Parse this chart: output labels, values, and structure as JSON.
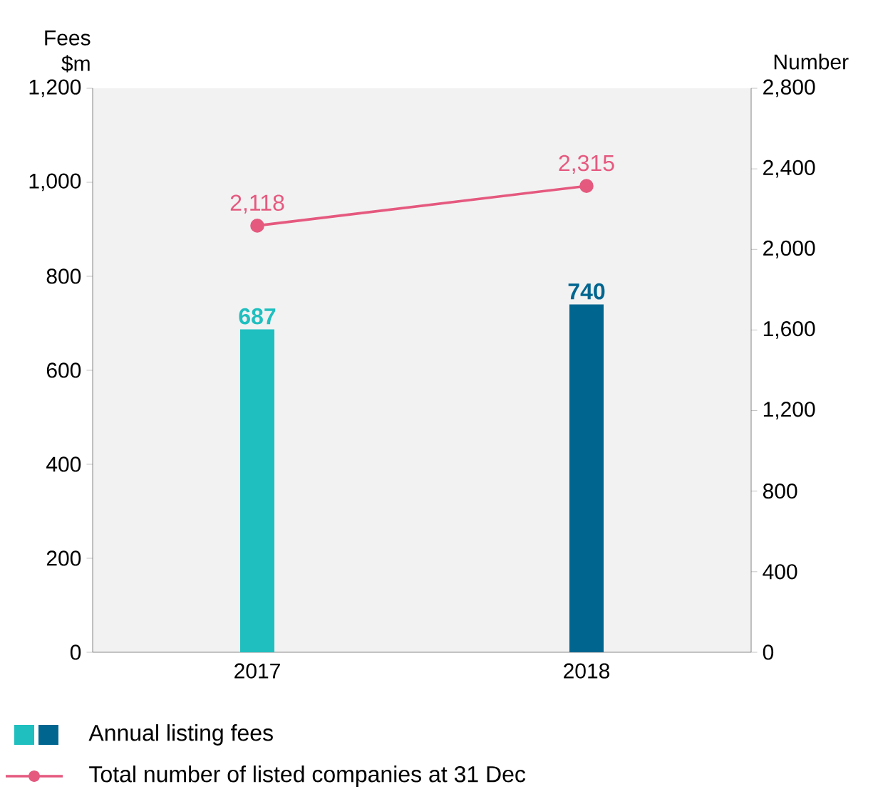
{
  "chart_data": {
    "type": "bar",
    "ylabel": "Fees $m",
    "y2label": "Number",
    "categories": [
      "2017",
      "2018"
    ],
    "series": [
      {
        "name": "Annual listing fees",
        "colors": [
          "#20bfbf",
          "#006690"
        ],
        "values": [
          687,
          740
        ],
        "value_labels": [
          "687",
          "740"
        ]
      },
      {
        "name": "Total number of listed companies at 31 Dec",
        "type": "line",
        "axis": "y2",
        "color": "#e5597f",
        "marker": "circle",
        "line_style": "solid",
        "values": [
          2118,
          2315
        ],
        "value_labels": [
          "2,118",
          "2,315"
        ]
      }
    ],
    "ylim": [
      0,
      1200
    ],
    "yticks": [
      0,
      200,
      400,
      600,
      800,
      {
        "value": 1000,
        "label": "1,000"
      },
      {
        "value": 1200,
        "label": "1,200"
      }
    ],
    "y2lim": [
      0,
      2800
    ],
    "y2ticks": [
      0,
      400,
      800,
      {
        "value": 1200,
        "label": "1,200"
      },
      {
        "value": 1600,
        "label": "1,600"
      },
      {
        "value": 2000,
        "label": "2,000"
      },
      {
        "value": 2400,
        "label": "2,400"
      },
      {
        "value": 2800,
        "label": "2,800"
      }
    ],
    "legend": "bottom"
  }
}
